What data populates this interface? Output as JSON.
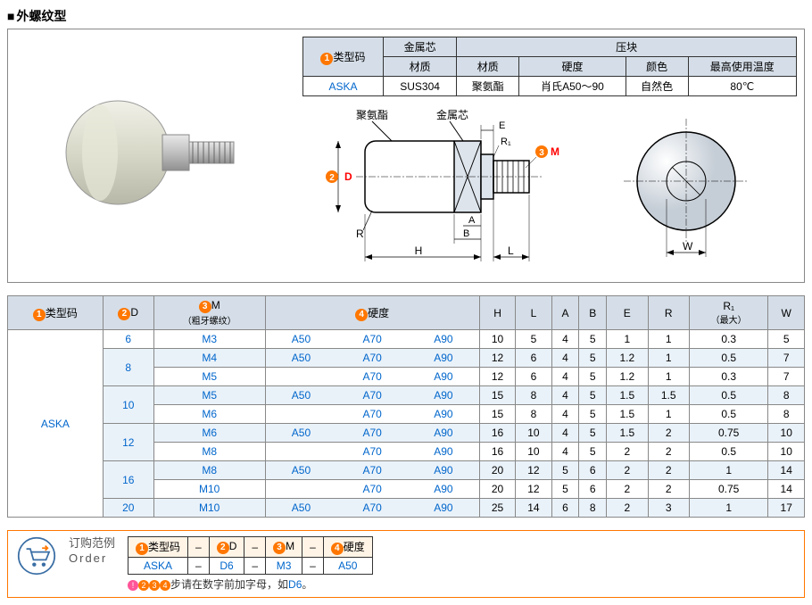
{
  "title": "外螺纹型",
  "spec_table": {
    "head1": "类型码",
    "head2": "金属芯",
    "head3": "压块",
    "sub_material": "材质",
    "sub_hardness": "硬度",
    "sub_color": "颜色",
    "sub_temp": "最高使用温度",
    "row": {
      "code": "ASKA",
      "core_mat": "SUS304",
      "block_mat": "聚氨酯",
      "hardness": "肖氏A50～90",
      "color": "自然色",
      "temp": "80℃"
    }
  },
  "diagram_labels": {
    "polyurethane": "聚氨酯",
    "core": "金属芯",
    "D": "D",
    "M": "M",
    "R": "R",
    "H": "H",
    "L": "L",
    "A": "A",
    "B": "B",
    "E": "E",
    "R1": "R₁",
    "W": "W",
    "badge2": "2",
    "badge3": "3"
  },
  "dim_table": {
    "headers": {
      "code": "类型码",
      "D": "D",
      "M": "M",
      "M_sub": "（粗牙螺纹）",
      "hardness": "硬度",
      "H": "H",
      "L": "L",
      "A": "A",
      "B": "B",
      "E": "E",
      "R": "R",
      "R1": "R₁",
      "R1_sub": "（最大）",
      "W": "W"
    },
    "badges": {
      "b1": "1",
      "b2": "2",
      "b3": "3",
      "b4": "4"
    },
    "code": "ASKA",
    "rows": [
      {
        "D": "6",
        "M": "M3",
        "hard": [
          "A50",
          "A70",
          "A90"
        ],
        "H": "10",
        "L": "5",
        "A": "4",
        "B": "5",
        "E": "1",
        "R": "1",
        "R1": "0.3",
        "W": "5",
        "alt": false
      },
      {
        "D": "8",
        "M": "M4",
        "hard": [
          "A50",
          "A70",
          "A90"
        ],
        "H": "12",
        "L": "6",
        "A": "4",
        "B": "5",
        "E": "1.2",
        "R": "1",
        "R1": "0.5",
        "W": "7",
        "alt": true,
        "rowspan": 2
      },
      {
        "D": "",
        "M": "M5",
        "hard": [
          "",
          "A70",
          "A90"
        ],
        "H": "12",
        "L": "6",
        "A": "4",
        "B": "5",
        "E": "1.2",
        "R": "1",
        "R1": "0.3",
        "W": "7",
        "alt": false
      },
      {
        "D": "10",
        "M": "M5",
        "hard": [
          "A50",
          "A70",
          "A90"
        ],
        "H": "15",
        "L": "8",
        "A": "4",
        "B": "5",
        "E": "1.5",
        "R": "1.5",
        "R1": "0.5",
        "W": "8",
        "alt": true,
        "rowspan": 2
      },
      {
        "D": "",
        "M": "M6",
        "hard": [
          "",
          "A70",
          "A90"
        ],
        "H": "15",
        "L": "8",
        "A": "4",
        "B": "5",
        "E": "1.5",
        "R": "1",
        "R1": "0.5",
        "W": "8",
        "alt": false
      },
      {
        "D": "12",
        "M": "M6",
        "hard": [
          "A50",
          "A70",
          "A90"
        ],
        "H": "16",
        "L": "10",
        "A": "4",
        "B": "5",
        "E": "1.5",
        "R": "2",
        "R1": "0.75",
        "W": "10",
        "alt": true,
        "rowspan": 2
      },
      {
        "D": "",
        "M": "M8",
        "hard": [
          "",
          "A70",
          "A90"
        ],
        "H": "16",
        "L": "10",
        "A": "4",
        "B": "5",
        "E": "2",
        "R": "2",
        "R1": "0.5",
        "W": "10",
        "alt": false
      },
      {
        "D": "16",
        "M": "M8",
        "hard": [
          "A50",
          "A70",
          "A90"
        ],
        "H": "20",
        "L": "12",
        "A": "5",
        "B": "6",
        "E": "2",
        "R": "2",
        "R1": "1",
        "W": "14",
        "alt": true,
        "rowspan": 2
      },
      {
        "D": "",
        "M": "M10",
        "hard": [
          "",
          "A70",
          "A90"
        ],
        "H": "20",
        "L": "12",
        "A": "5",
        "B": "6",
        "E": "2",
        "R": "2",
        "R1": "0.75",
        "W": "14",
        "alt": false
      },
      {
        "D": "20",
        "M": "M10",
        "hard": [
          "A50",
          "A70",
          "A90"
        ],
        "H": "25",
        "L": "14",
        "A": "6",
        "B": "8",
        "E": "2",
        "R": "3",
        "R1": "1",
        "W": "17",
        "alt": true
      }
    ]
  },
  "order": {
    "label1": "订购范例",
    "label2": "Order",
    "headers": [
      "类型码",
      "–",
      "D",
      "–",
      "M",
      "–",
      "硬度"
    ],
    "badges": [
      "1",
      "2",
      "3",
      "4"
    ],
    "values": [
      "ASKA",
      "–",
      "D6",
      "–",
      "M3",
      "–",
      "A50"
    ],
    "note_pre": "步请在数字前加字母，如",
    "note_hl": "D6",
    "note_suf": "。",
    "note_badges": "234"
  },
  "colors": {
    "header_bg": "#d5dee8",
    "alt_bg": "#eaf2f9",
    "link": "#0066cc",
    "badge": "#ff7700",
    "border": "#888888"
  }
}
